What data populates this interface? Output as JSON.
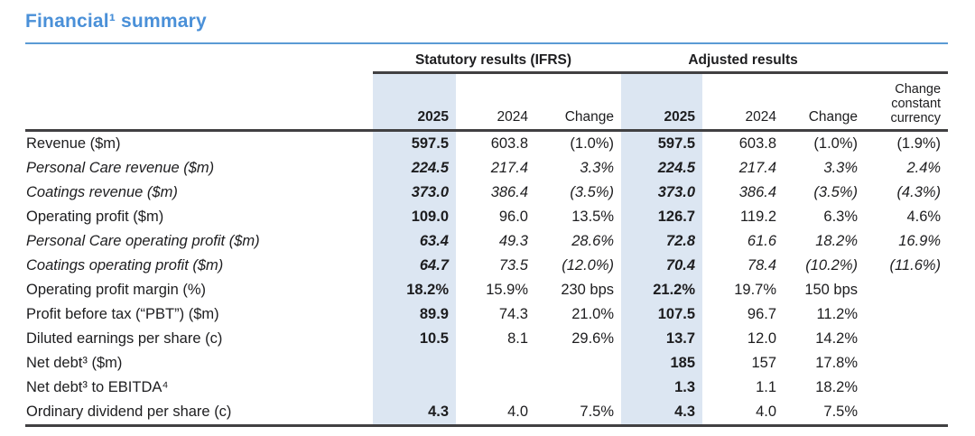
{
  "page": {
    "title": "Financial¹ summary"
  },
  "colors": {
    "accent_blue": "#4a90d8",
    "rule_blue": "#5b9bd5",
    "highlight_blue": "#dce6f2",
    "rule_dark": "#414042",
    "text": "#1d1d1f"
  },
  "table": {
    "group_headers": {
      "statutory": "Statutory results (IFRS)",
      "adjusted": "Adjusted results"
    },
    "column_headers": {
      "stat_2025": "2025",
      "stat_2024": "2024",
      "stat_change": "Change",
      "adj_2025": "2025",
      "adj_2024": "2024",
      "adj_change": "Change",
      "change_constant_currency": "Change constant currency"
    },
    "rows": [
      {
        "label": "Revenue ($m)",
        "values": [
          "597.5",
          "603.8",
          "(1.0%)",
          "597.5",
          "603.8",
          "(1.0%)",
          "(1.9%)"
        ]
      },
      {
        "label": "Personal Care revenue ($m)",
        "values": [
          "224.5",
          "217.4",
          "3.3%",
          "224.5",
          "217.4",
          "3.3%",
          "2.4%"
        ]
      },
      {
        "label": "Coatings revenue ($m)",
        "values": [
          "373.0",
          "386.4",
          "(3.5%)",
          "373.0",
          "386.4",
          "(3.5%)",
          "(4.3%)"
        ]
      },
      {
        "label": "Operating profit ($m)",
        "values": [
          "109.0",
          "96.0",
          "13.5%",
          "126.7",
          "119.2",
          "6.3%",
          "4.6%"
        ]
      },
      {
        "label": "Personal Care operating profit ($m)",
        "values": [
          "63.4",
          "49.3",
          "28.6%",
          "72.8",
          "61.6",
          "18.2%",
          "16.9%"
        ]
      },
      {
        "label": "Coatings operating profit ($m)",
        "values": [
          "64.7",
          "73.5",
          "(12.0%)",
          "70.4",
          "78.4",
          "(10.2%)",
          "(11.6%)"
        ]
      },
      {
        "label": "Operating profit margin (%)",
        "values": [
          "18.2%",
          "15.9%",
          "230 bps",
          "21.2%",
          "19.7%",
          "150 bps",
          ""
        ]
      },
      {
        "label": "Profit before tax (“PBT”) ($m)",
        "values": [
          "89.9",
          "74.3",
          "21.0%",
          "107.5",
          "96.7",
          "11.2%",
          ""
        ]
      },
      {
        "label": "Diluted earnings per share (c)",
        "values": [
          "10.5",
          "8.1",
          "29.6%",
          "13.7",
          "12.0",
          "14.2%",
          ""
        ]
      },
      {
        "label": "Net debt³ ($m)",
        "values": [
          "",
          "",
          "",
          "185",
          "157",
          "17.8%",
          ""
        ]
      },
      {
        "label": "Net debt³ to EBITDA⁴",
        "values": [
          "",
          "",
          "",
          "1.3",
          "1.1",
          "18.2%",
          ""
        ]
      },
      {
        "label": "Ordinary dividend per share (c)",
        "values": [
          "4.3",
          "4.0",
          "7.5%",
          "4.3",
          "4.0",
          "7.5%",
          ""
        ]
      }
    ]
  }
}
